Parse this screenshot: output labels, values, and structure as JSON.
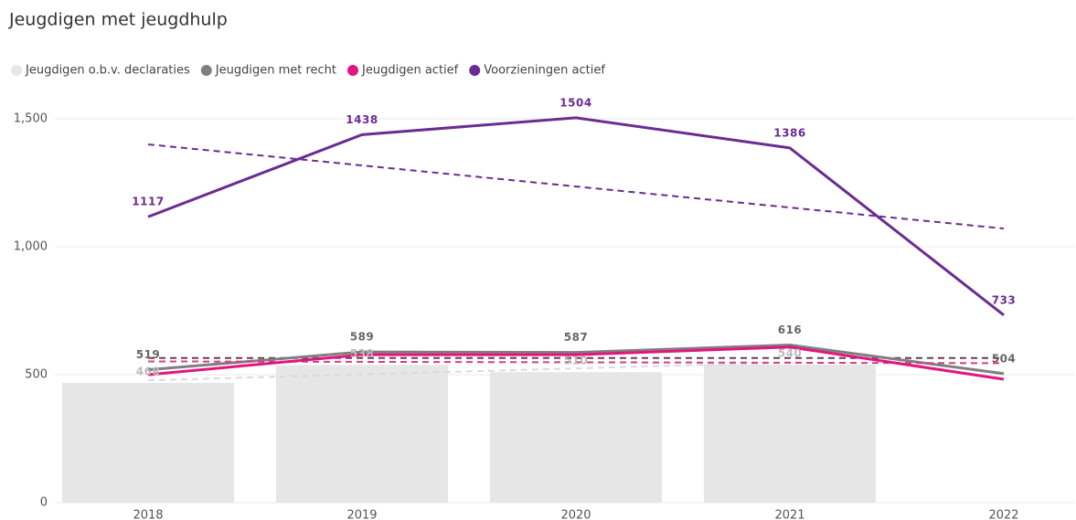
{
  "chart_data": {
    "type": "combo",
    "title": "Jeugdigen met jeugdhulp",
    "categories": [
      "2018",
      "2019",
      "2020",
      "2021",
      "2022"
    ],
    "ylim": [
      0,
      1500
    ],
    "yticks": [
      0,
      {
        "value": 500,
        "label": "500"
      },
      {
        "value": 1000,
        "label": "1,000"
      },
      {
        "value": 1500,
        "label": "1,500"
      }
    ],
    "grid": true,
    "series": [
      {
        "name": "Jeugdigen o.b.v. declaraties",
        "kind": "bar",
        "color": "#e6e6e6",
        "values": [
          468,
          538,
          510,
          540,
          null
        ],
        "labels": true,
        "trend": [
          478,
          548
        ],
        "trend_color": "#d9d9e6"
      },
      {
        "name": "Jeugdigen met recht",
        "kind": "line",
        "color": "#7f7f7f",
        "values": [
          519,
          589,
          587,
          616,
          504
        ],
        "labels": true,
        "trend": [
          565,
          565
        ],
        "trend_color": "#6b3a5a"
      },
      {
        "name": "Jeugdigen actief",
        "kind": "line",
        "color": "#e3157f",
        "values": [
          500,
          578,
          578,
          608,
          482
        ],
        "labels": false,
        "trend": [
          552,
          545
        ],
        "trend_color": "#d2407f"
      },
      {
        "name": "Voorzieningen actief",
        "kind": "line",
        "color": "#6b2c91",
        "values": [
          1117,
          1438,
          1504,
          1386,
          733
        ],
        "labels": true,
        "trend": [
          1400,
          1071
        ],
        "trend_color": "#6b2c91"
      }
    ]
  }
}
